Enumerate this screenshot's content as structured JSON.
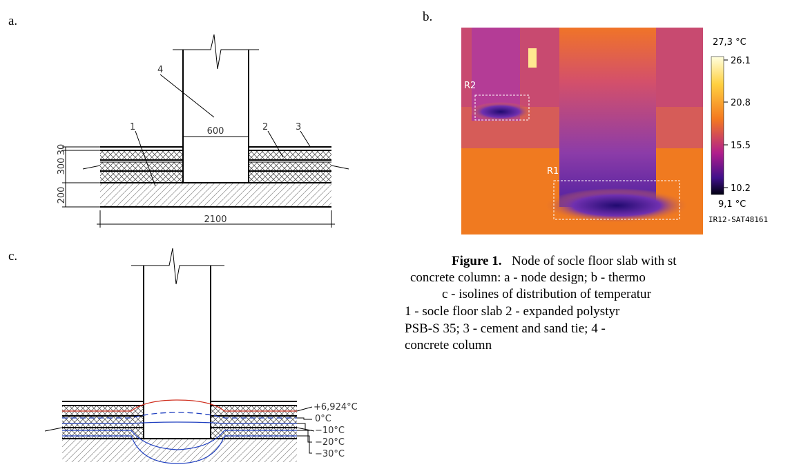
{
  "panel_a": {
    "label": "a.",
    "callouts": [
      "1",
      "2",
      "3",
      "4"
    ],
    "width_dim": "600",
    "layer_dims": [
      "30",
      "300",
      "200"
    ],
    "total_dim": "2100"
  },
  "panel_b": {
    "label": "b.",
    "regions": [
      "R1",
      "R2"
    ],
    "scale_max": "27,3 °C",
    "scale_ticks": [
      "26.1",
      "20.8",
      "15.5",
      "10.2"
    ],
    "scale_min": "9,1 °C",
    "camera_id": "IR12-SAT48161"
  },
  "panel_c": {
    "label": "c.",
    "isotherms": [
      "+6,924°C",
      "0°C",
      "−10°C",
      "−20°C",
      "−30°C"
    ]
  },
  "caption": {
    "title": "Figure 1.",
    "lines": [
      "Node of socle floor slab with st",
      "concrete column: a - node design; b - thermo",
      "c - isolines of distribution of temperatur",
      "1 - socle floor slab 2 - expanded polystyr",
      "PSB-S 35; 3 - cement and sand tie; 4 -",
      "concrete column"
    ]
  }
}
